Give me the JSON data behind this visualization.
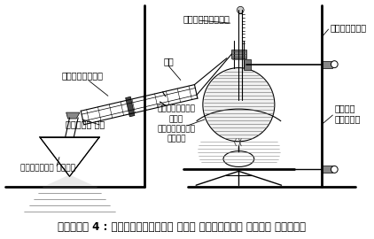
{
  "title": "चित्र 4 : प्रयोगशाला में फॉर्मिक अम्ल बनाना",
  "bg_color": "#ffffff",
  "labels": {
    "thermometer": "थर्मामीटर",
    "stand": "स्टैण्ड",
    "jal": "जल",
    "condenser": "संघनित्र",
    "cold_water": "ठण्डा जल",
    "formic_acid": "फॉर्मिक अम्ल",
    "glycerol": "ग्लिसरॉल\nतथा\nऑक्सैलिक\nअम्ल",
    "sand_bath": "बालू\nऊष्मक"
  },
  "line_color": "#000000",
  "title_fontsize": 8.5,
  "label_fontsize": 7.0
}
